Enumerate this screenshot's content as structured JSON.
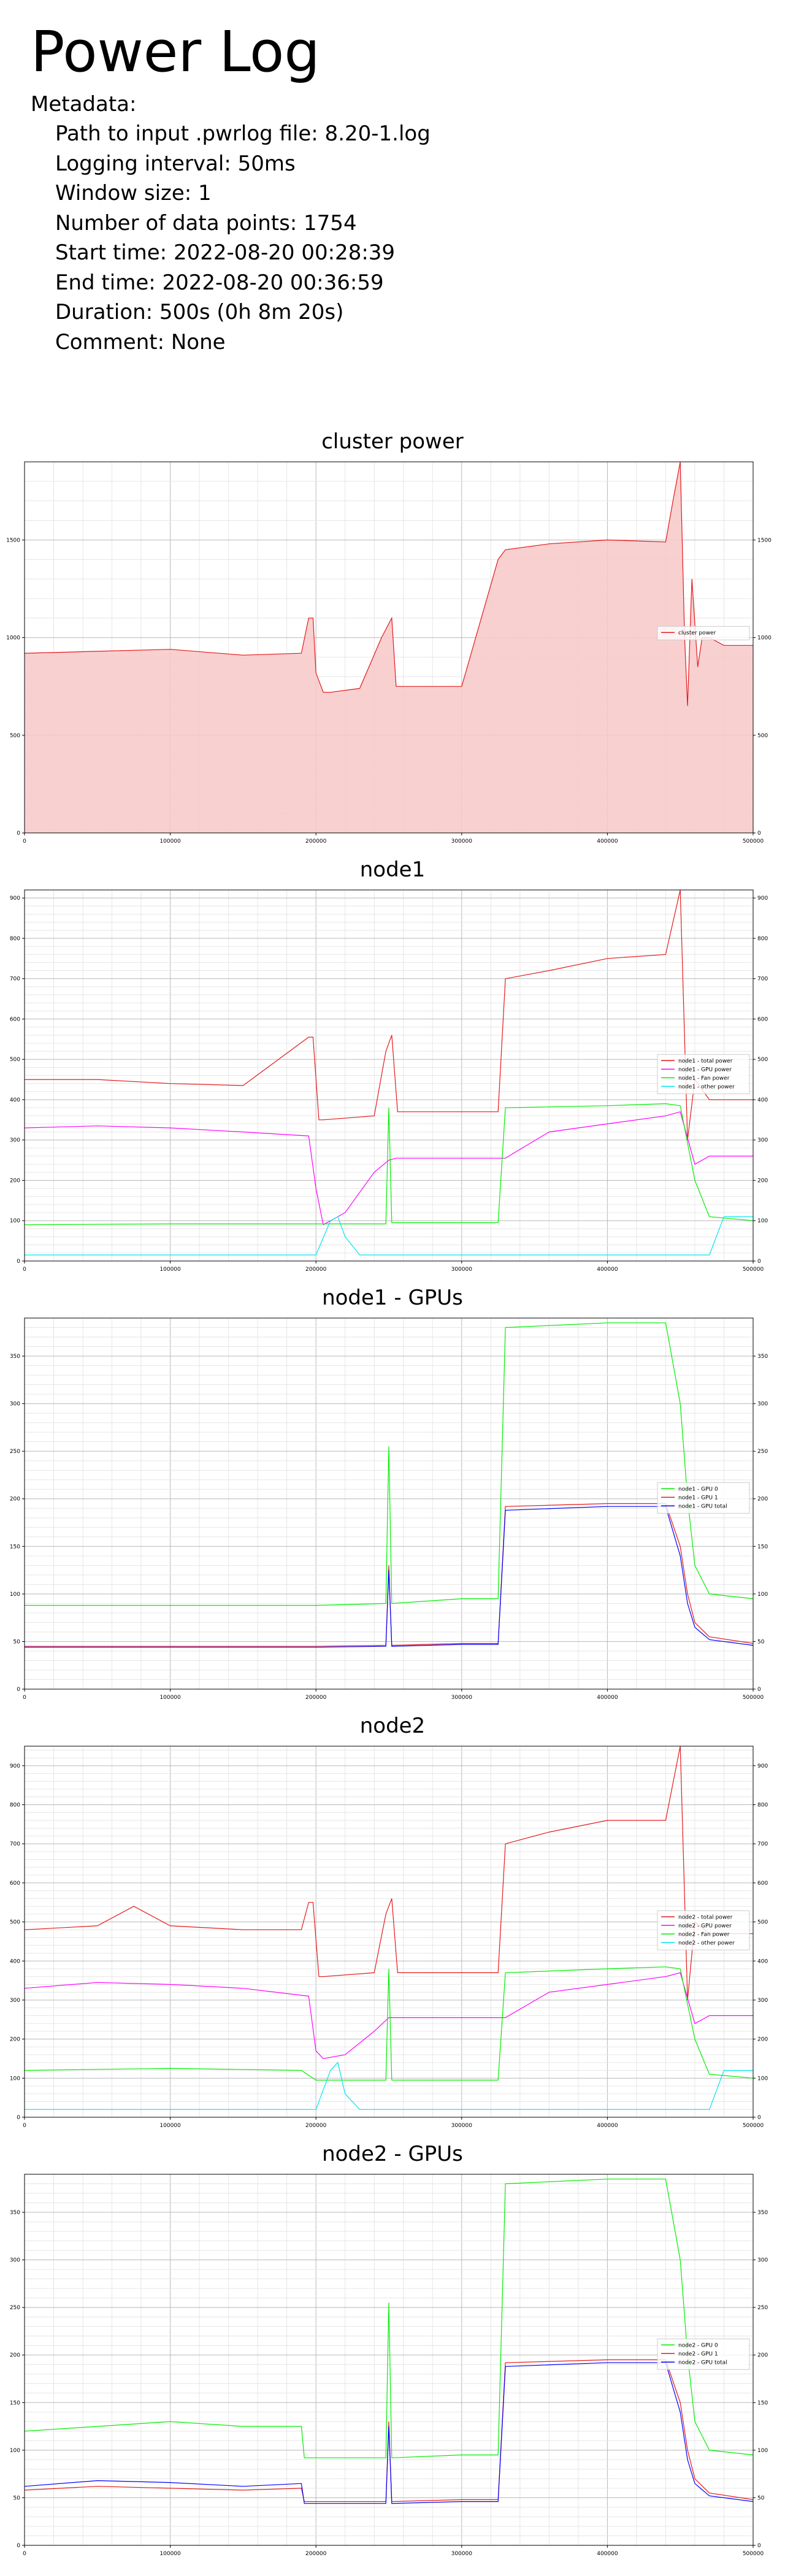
{
  "page": {
    "title": "Power Log",
    "metadata_label": "Metadata:",
    "metadata": [
      "Path to input .pwrlog file: 8.20-1.log",
      "Logging interval: 50ms",
      "Window size: 1",
      "Number of data points: 1754",
      "Start time: 2022-08-20 00:28:39",
      "End time: 2022-08-20 00:36:59",
      "Duration: 500s  (0h 8m 20s)",
      "Comment: None"
    ]
  },
  "chart_data": [
    {
      "type": "area",
      "title": "cluster power",
      "xlim": [
        0,
        500000
      ],
      "ylim": [
        0,
        1900
      ],
      "xticks": [
        0,
        100000,
        200000,
        300000,
        400000,
        500000
      ],
      "yticks": [
        0,
        500,
        1000,
        1500
      ],
      "grid": true,
      "legend": "right",
      "series": [
        {
          "name": "cluster power",
          "color": "#e41a1c",
          "fill": "#f8c8c8",
          "x": [
            0,
            50000,
            100000,
            150000,
            190000,
            195000,
            198000,
            200000,
            205000,
            210000,
            230000,
            245000,
            252000,
            255000,
            260000,
            300000,
            325000,
            330000,
            360000,
            400000,
            440000,
            445000,
            450000,
            453000,
            455000,
            458000,
            462000,
            465000,
            470000,
            480000,
            490000,
            500000
          ],
          "y": [
            920,
            930,
            940,
            910,
            920,
            1100,
            1100,
            820,
            720,
            720,
            740,
            1000,
            1100,
            750,
            750,
            750,
            1400,
            1450,
            1480,
            1500,
            1490,
            1700,
            1900,
            1000,
            650,
            1300,
            850,
            1000,
            1000,
            960,
            960,
            960
          ]
        }
      ]
    },
    {
      "type": "line",
      "title": "node1",
      "xlim": [
        0,
        500000
      ],
      "ylim": [
        0,
        920
      ],
      "xticks": [
        0,
        100000,
        200000,
        300000,
        400000,
        500000
      ],
      "yticks": [
        0,
        100,
        200,
        300,
        400,
        500,
        600,
        700,
        800,
        900
      ],
      "grid": true,
      "legend": "right",
      "series": [
        {
          "name": "node1 - total power",
          "color": "#e41a1c",
          "x": [
            0,
            50000,
            100000,
            150000,
            195000,
            198000,
            202000,
            205000,
            240000,
            248000,
            252000,
            256000,
            325000,
            330000,
            360000,
            400000,
            440000,
            450000,
            455000,
            460000,
            470000,
            500000
          ],
          "y": [
            450,
            450,
            440,
            435,
            555,
            555,
            350,
            350,
            360,
            520,
            560,
            370,
            370,
            700,
            720,
            750,
            760,
            920,
            300,
            450,
            400,
            400
          ]
        },
        {
          "name": "node1 - GPU power",
          "color": "#ff00ff",
          "x": [
            0,
            50000,
            100000,
            150000,
            195000,
            200000,
            205000,
            220000,
            240000,
            250000,
            255000,
            330000,
            360000,
            400000,
            440000,
            450000,
            460000,
            470000,
            490000,
            500000
          ],
          "y": [
            330,
            335,
            330,
            320,
            310,
            180,
            90,
            120,
            220,
            250,
            255,
            255,
            320,
            340,
            360,
            370,
            240,
            260,
            260,
            260
          ]
        },
        {
          "name": "node1 - Fan power",
          "color": "#00ee00",
          "x": [
            0,
            100000,
            200000,
            248000,
            250000,
            252000,
            300000,
            325000,
            330000,
            400000,
            440000,
            450000,
            460000,
            470000,
            500000
          ],
          "y": [
            90,
            92,
            92,
            92,
            380,
            95,
            95,
            95,
            380,
            385,
            390,
            385,
            200,
            110,
            100
          ]
        },
        {
          "name": "node1 - other power",
          "color": "#00e5ee",
          "x": [
            0,
            200000,
            210000,
            215000,
            220000,
            230000,
            300000,
            400000,
            450000,
            470000,
            480000,
            500000
          ],
          "y": [
            15,
            15,
            100,
            110,
            60,
            15,
            15,
            15,
            15,
            15,
            110,
            110
          ]
        }
      ]
    },
    {
      "type": "line",
      "title": "node1 - GPUs",
      "xlim": [
        0,
        500000
      ],
      "ylim": [
        0,
        390
      ],
      "xticks": [
        0,
        100000,
        200000,
        300000,
        400000,
        500000
      ],
      "yticks": [
        0,
        50,
        100,
        150,
        200,
        250,
        300,
        350
      ],
      "grid": true,
      "legend": "right",
      "series": [
        {
          "name": "node1 - GPU 0",
          "color": "#00ee00",
          "x": [
            0,
            100000,
            200000,
            248000,
            250000,
            252000,
            300000,
            325000,
            330000,
            400000,
            440000,
            450000,
            455000,
            460000,
            470000,
            500000
          ],
          "y": [
            88,
            88,
            88,
            90,
            255,
            90,
            95,
            95,
            380,
            385,
            385,
            300,
            200,
            130,
            100,
            95
          ]
        },
        {
          "name": "node1 - GPU 1",
          "color": "#e41a1c",
          "x": [
            0,
            100000,
            200000,
            248000,
            250000,
            252000,
            300000,
            325000,
            330000,
            400000,
            440000,
            450000,
            455000,
            460000,
            470000,
            500000
          ],
          "y": [
            45,
            45,
            45,
            46,
            130,
            46,
            48,
            48,
            192,
            195,
            195,
            150,
            100,
            70,
            55,
            48
          ]
        },
        {
          "name": "node1 - GPU total",
          "color": "#0000ff",
          "x": [
            0,
            100000,
            200000,
            248000,
            250000,
            252000,
            300000,
            325000,
            330000,
            400000,
            440000,
            450000,
            455000,
            460000,
            470000,
            500000
          ],
          "y": [
            44,
            44,
            44,
            45,
            125,
            45,
            47,
            47,
            188,
            192,
            192,
            140,
            90,
            65,
            52,
            46
          ]
        }
      ]
    },
    {
      "type": "line",
      "title": "node2",
      "xlim": [
        0,
        500000
      ],
      "ylim": [
        0,
        950
      ],
      "xticks": [
        0,
        100000,
        200000,
        300000,
        400000,
        500000
      ],
      "yticks": [
        0,
        100,
        200,
        300,
        400,
        500,
        600,
        700,
        800,
        900
      ],
      "grid": true,
      "legend": "right",
      "series": [
        {
          "name": "node2 - total power",
          "color": "#e41a1c",
          "x": [
            0,
            50000,
            75000,
            100000,
            150000,
            190000,
            195000,
            198000,
            202000,
            205000,
            240000,
            248000,
            252000,
            256000,
            325000,
            330000,
            360000,
            400000,
            440000,
            450000,
            455000,
            460000,
            470000,
            500000
          ],
          "y": [
            480,
            490,
            540,
            490,
            480,
            480,
            550,
            550,
            360,
            360,
            370,
            520,
            560,
            370,
            370,
            700,
            730,
            760,
            760,
            950,
            300,
            500,
            470,
            470
          ]
        },
        {
          "name": "node2 - GPU power",
          "color": "#ff00ff",
          "x": [
            0,
            50000,
            100000,
            150000,
            195000,
            200000,
            205000,
            220000,
            240000,
            250000,
            255000,
            330000,
            360000,
            400000,
            440000,
            450000,
            460000,
            470000,
            490000,
            500000
          ],
          "y": [
            330,
            345,
            340,
            330,
            310,
            170,
            150,
            160,
            220,
            255,
            255,
            255,
            320,
            340,
            360,
            370,
            240,
            260,
            260,
            260
          ]
        },
        {
          "name": "node2 - Fan power",
          "color": "#00ee00",
          "x": [
            0,
            100000,
            190000,
            200000,
            248000,
            250000,
            252000,
            300000,
            325000,
            330000,
            400000,
            440000,
            450000,
            460000,
            470000,
            500000
          ],
          "y": [
            120,
            125,
            120,
            95,
            95,
            380,
            95,
            95,
            95,
            370,
            380,
            385,
            380,
            200,
            110,
            100
          ]
        },
        {
          "name": "node2 - other power",
          "color": "#00e5ee",
          "x": [
            0,
            200000,
            210000,
            215000,
            220000,
            230000,
            300000,
            400000,
            450000,
            470000,
            480000,
            500000
          ],
          "y": [
            20,
            20,
            120,
            140,
            60,
            20,
            20,
            20,
            20,
            20,
            120,
            120
          ]
        }
      ]
    },
    {
      "type": "line",
      "title": "node2 - GPUs",
      "xlim": [
        0,
        500000
      ],
      "ylim": [
        0,
        390
      ],
      "xticks": [
        0,
        100000,
        200000,
        300000,
        400000,
        500000
      ],
      "yticks": [
        0,
        50,
        100,
        150,
        200,
        250,
        300,
        350
      ],
      "grid": true,
      "legend": "right",
      "series": [
        {
          "name": "node2 - GPU 0",
          "color": "#00ee00",
          "x": [
            0,
            50000,
            100000,
            150000,
            190000,
            192000,
            248000,
            250000,
            252000,
            300000,
            325000,
            330000,
            400000,
            440000,
            450000,
            455000,
            460000,
            470000,
            500000
          ],
          "y": [
            120,
            125,
            130,
            125,
            125,
            92,
            92,
            255,
            92,
            95,
            95,
            380,
            385,
            385,
            300,
            200,
            130,
            100,
            95
          ]
        },
        {
          "name": "node2 - GPU 1",
          "color": "#e41a1c",
          "x": [
            0,
            50000,
            100000,
            150000,
            190000,
            192000,
            248000,
            250000,
            252000,
            300000,
            325000,
            330000,
            400000,
            440000,
            450000,
            455000,
            460000,
            470000,
            500000
          ],
          "y": [
            58,
            62,
            60,
            58,
            60,
            46,
            46,
            130,
            46,
            48,
            48,
            192,
            195,
            195,
            150,
            100,
            70,
            55,
            48
          ]
        },
        {
          "name": "node2 - GPU total",
          "color": "#0000ff",
          "x": [
            0,
            50000,
            100000,
            150000,
            190000,
            192000,
            248000,
            250000,
            252000,
            300000,
            325000,
            330000,
            400000,
            440000,
            450000,
            455000,
            460000,
            470000,
            500000
          ],
          "y": [
            62,
            68,
            66,
            62,
            65,
            44,
            44,
            125,
            44,
            46,
            46,
            188,
            192,
            192,
            140,
            90,
            65,
            52,
            46
          ]
        }
      ]
    }
  ]
}
